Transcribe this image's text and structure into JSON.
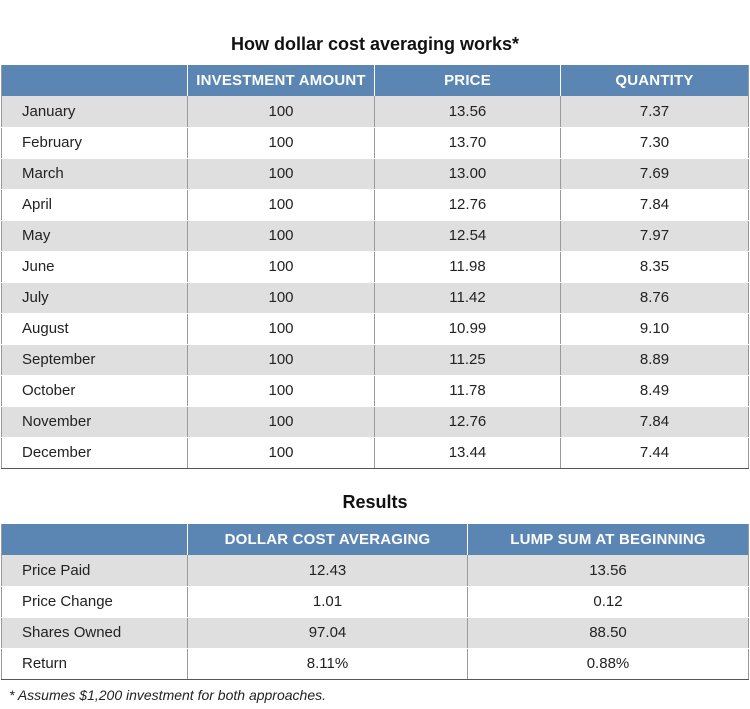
{
  "chart_data": [
    {
      "type": "table",
      "title": "How dollar cost averaging works*",
      "columns": [
        "",
        "INVESTMENT AMOUNT",
        "PRICE",
        "QUANTITY"
      ],
      "rows": [
        [
          "January",
          "100",
          "13.56",
          "7.37"
        ],
        [
          "February",
          "100",
          "13.70",
          "7.30"
        ],
        [
          "March",
          "100",
          "13.00",
          "7.69"
        ],
        [
          "April",
          "100",
          "12.76",
          "7.84"
        ],
        [
          "May",
          "100",
          "12.54",
          "7.97"
        ],
        [
          "June",
          "100",
          "11.98",
          "8.35"
        ],
        [
          "July",
          "100",
          "11.42",
          "8.76"
        ],
        [
          "August",
          "100",
          "10.99",
          "9.10"
        ],
        [
          "September",
          "100",
          "11.25",
          "8.89"
        ],
        [
          "October",
          "100",
          "11.78",
          "8.49"
        ],
        [
          "November",
          "100",
          "12.76",
          "7.84"
        ],
        [
          "December",
          "100",
          "13.44",
          "7.44"
        ]
      ]
    },
    {
      "type": "table",
      "title": "Results",
      "columns": [
        "",
        "DOLLAR COST AVERAGING",
        "LUMP SUM AT BEGINNING"
      ],
      "rows": [
        [
          "Price Paid",
          "12.43",
          "13.56"
        ],
        [
          "Price Change",
          "1.01",
          "0.12"
        ],
        [
          "Shares Owned",
          "97.04",
          "88.50"
        ],
        [
          "Return",
          "8.11%",
          "0.88%"
        ]
      ]
    }
  ],
  "footnote": "* Assumes $1,200 investment for both approaches.",
  "colors": {
    "header_bg": "#5b86b3",
    "row_shade": "#dfdfe0"
  }
}
